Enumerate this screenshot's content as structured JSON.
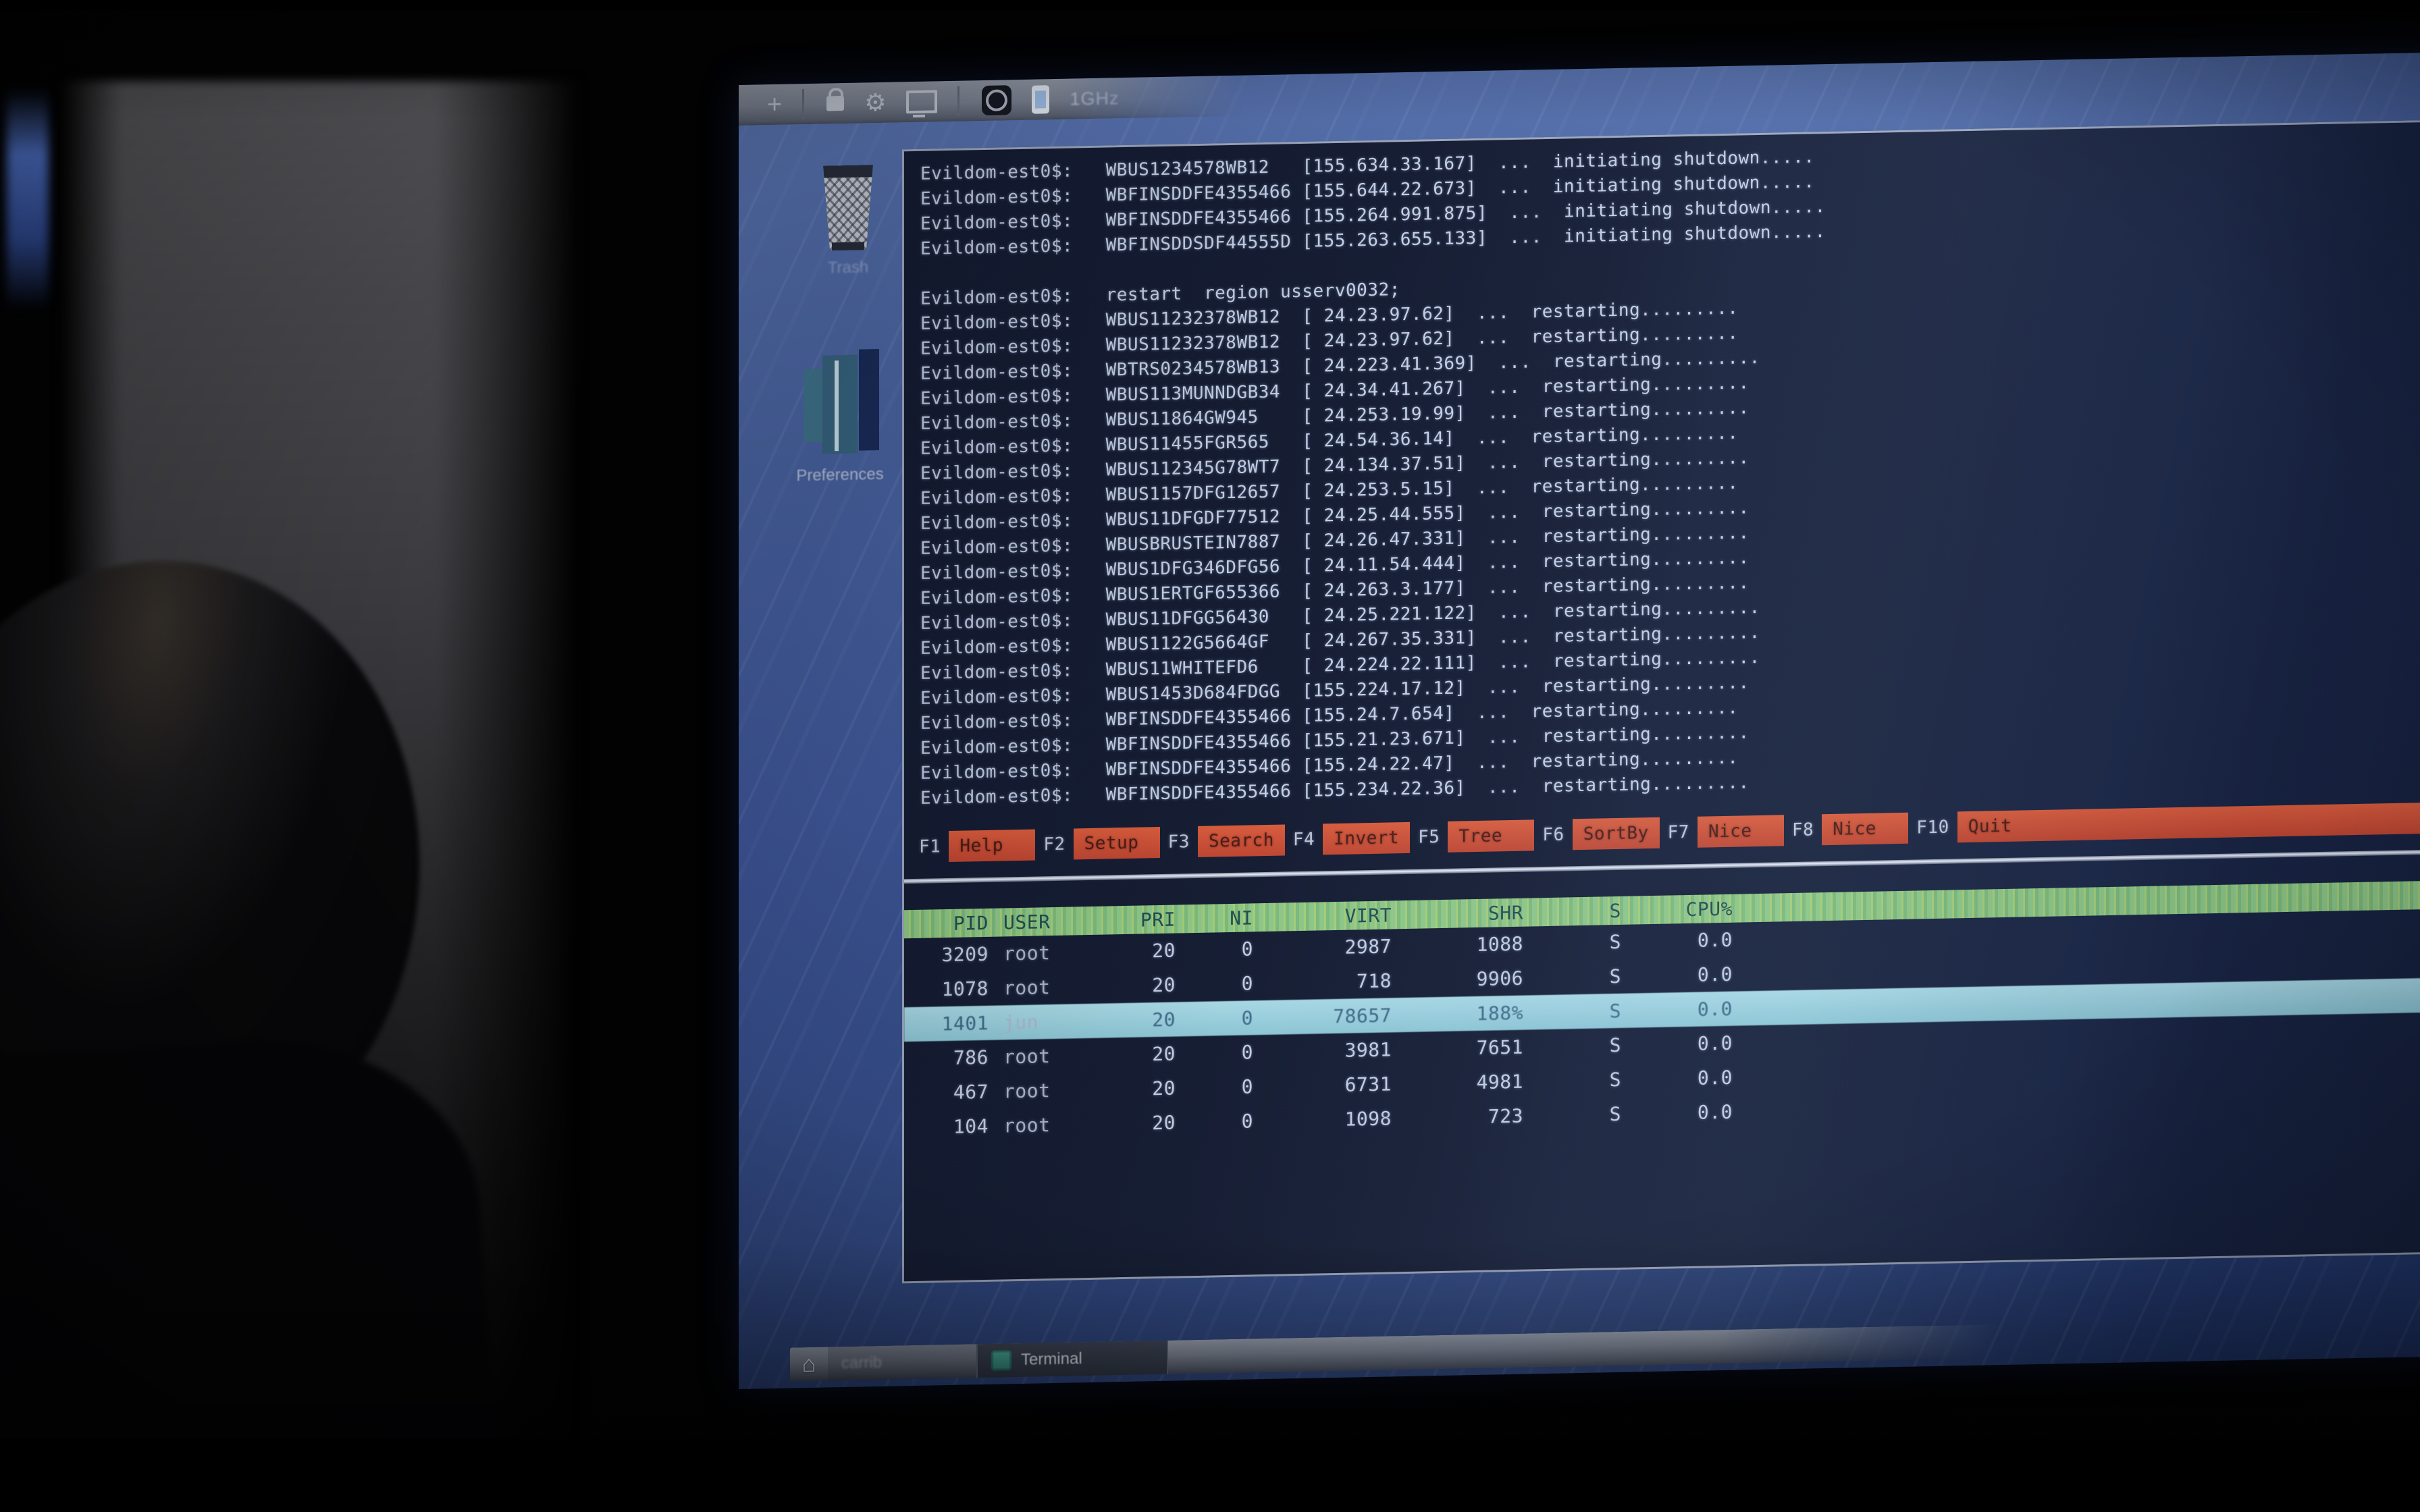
{
  "screen": {
    "panel": {
      "status_label": "1GHz",
      "icons": [
        "plus-icon",
        "lock-icon",
        "gear-icon",
        "display-icon",
        "badge-icon",
        "phone-icon"
      ]
    },
    "desktop_icons": [
      {
        "label": "Trash"
      },
      {
        "label": "Preferences"
      }
    ],
    "terminal": {
      "prompt": "Evildom-est0$:",
      "log_lines": [
        "WBUS1234578WB12   [155.634.33.167]  ...  initiating shutdown.....",
        "WBFINSDDFE4355466 [155.644.22.673]  ...  initiating shutdown.....",
        "WBFINSDDFE4355466 [155.264.991.875]  ...  initiating shutdown.....",
        "WBFINSDDSDF44555D [155.263.655.133]  ...  initiating shutdown.....",
        "",
        "restart  region usserv0032;",
        "WBUS11232378WB12  [ 24.23.97.62]  ...  restarting.........",
        "WBUS11232378WB12  [ 24.23.97.62]  ...  restarting.........",
        "WBTRS0234578WB13  [ 24.223.41.369]  ...  restarting.........",
        "WBUS113MUNNDGB34  [ 24.34.41.267]  ...  restarting.........",
        "WBUS11864GW945    [ 24.253.19.99]  ...  restarting.........",
        "WBUS11455FGR565   [ 24.54.36.14]  ...  restarting.........",
        "WBUS112345G78WT7  [ 24.134.37.51]  ...  restarting.........",
        "WBUS1157DFG12657  [ 24.253.5.15]  ...  restarting.........",
        "WBUS11DFGDF77512  [ 24.25.44.555]  ...  restarting.........",
        "WBUSBRUSTEIN7887  [ 24.26.47.331]  ...  restarting.........",
        "WBUS1DFG346DFG56  [ 24.11.54.444]  ...  restarting.........",
        "WBUS1ERTGF655366  [ 24.263.3.177]  ...  restarting.........",
        "WBUS11DFGG56430   [ 24.25.221.122]  ...  restarting.........",
        "WBUS1122G5664GF   [ 24.267.35.331]  ...  restarting.........",
        "WBUS11WHITEFD6    [ 24.224.22.111]  ...  restarting.........",
        "WBUS1453D684FDGG  [155.224.17.12]  ...  restarting.........",
        "WBFINSDDFE4355466 [155.24.7.654]  ...  restarting.........",
        "WBFINSDDFE4355466 [155.21.23.671]  ...  restarting.........",
        "WBFINSDDFE4355466 [155.24.22.47]  ...  restarting.........",
        "WBFINSDDFE4355466 [155.234.22.36]  ...  restarting........."
      ],
      "fkeys": [
        {
          "key": "F1",
          "label": "Help"
        },
        {
          "key": "F2",
          "label": "Setup"
        },
        {
          "key": "F3",
          "label": "Search"
        },
        {
          "key": "F4",
          "label": "Invert"
        },
        {
          "key": "F5",
          "label": "Tree"
        },
        {
          "key": "F6",
          "label": "SortBy"
        },
        {
          "key": "F7",
          "label": "Nice"
        },
        {
          "key": "F8",
          "label": "Nice"
        },
        {
          "key": "F10",
          "label": "Quit"
        }
      ],
      "process_table": {
        "headers": [
          "PID",
          "USER",
          "PRI",
          "NI",
          "VIRT",
          "SHR",
          "S",
          "CPU%"
        ],
        "rows": [
          {
            "pid": "3209",
            "user": "root",
            "pri": "20",
            "ni": "0",
            "virt": "2987",
            "shr": "1088",
            "s": "S",
            "cpu": "0.0"
          },
          {
            "pid": "1078",
            "user": "root",
            "pri": "20",
            "ni": "0",
            "virt": "718",
            "shr": "9906",
            "s": "S",
            "cpu": "0.0"
          },
          {
            "pid": "1401",
            "user": "jun",
            "pri": "20",
            "ni": "0",
            "virt": "78657",
            "shr": "188%",
            "s": "S",
            "cpu": "0.0"
          },
          {
            "pid": "786",
            "user": "root",
            "pri": "20",
            "ni": "0",
            "virt": "3981",
            "shr": "7651",
            "s": "S",
            "cpu": "0.0"
          },
          {
            "pid": "467",
            "user": "root",
            "pri": "20",
            "ni": "0",
            "virt": "6731",
            "shr": "4981",
            "s": "S",
            "cpu": "0.0"
          },
          {
            "pid": "104",
            "user": "root",
            "pri": "20",
            "ni": "0",
            "virt": "1098",
            "shr": "723",
            "s": "S",
            "cpu": "0.0"
          }
        ],
        "selected_row_index": 2
      }
    },
    "taskbar": {
      "items": [
        {
          "icon": "home-icon",
          "label": "carrib"
        },
        {
          "icon": "terminal-icon",
          "label": "Terminal"
        }
      ]
    }
  },
  "colors": {
    "desktop_blue": "#40589a",
    "terminal_bg": "#10162a",
    "fkey_red": "#cc4a2e",
    "header_green": "#8ec983",
    "selected_cyan": "#9fd3dc",
    "panel_gray": "#7b818d"
  }
}
